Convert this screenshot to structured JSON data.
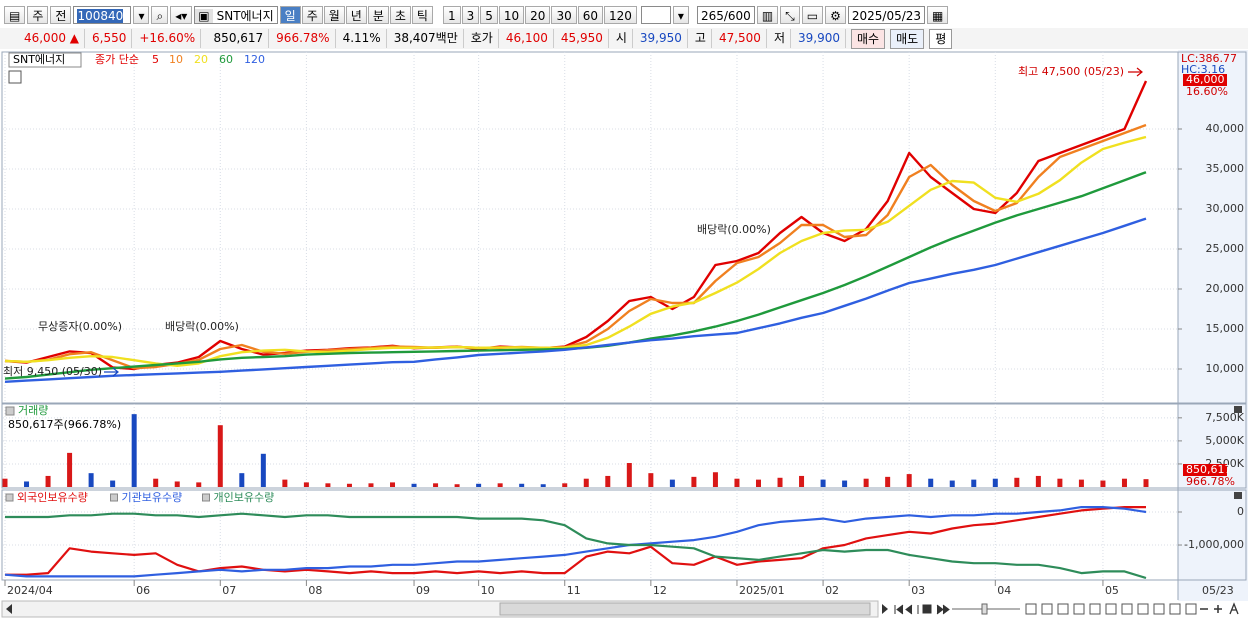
{
  "toolbar": {
    "market": "주",
    "scope": "전",
    "code": "100840",
    "name": "SNT에너지",
    "periods": [
      "일",
      "주",
      "월",
      "년",
      "분",
      "초",
      "틱"
    ],
    "intervals": [
      "1",
      "3",
      "5",
      "10",
      "20",
      "30",
      "60",
      "120"
    ],
    "count": "265",
    "max": "/600",
    "date": "2025/05/23"
  },
  "quote": {
    "price": "46,000 ▲",
    "change": "6,550",
    "rate": "+16.60%",
    "volume": "850,617",
    "volume_rate": "966.78%",
    "turnover": "4.11%",
    "amount": "38,407백만",
    "ask_label": "호가",
    "ask": "46,100",
    "bid": "45,950",
    "open_label": "시",
    "open": "39,950",
    "high_label": "고",
    "high": "47,500",
    "low_label": "저",
    "low": "39,900",
    "buy": "매수",
    "sell": "매도",
    "avg": "평"
  },
  "chart_data": [
    {
      "type": "line",
      "legend_title": "SNT에너지",
      "legend_prefix": "종가 단순",
      "lc": "LC:386.77",
      "hc": "HC:3.16",
      "current": {
        "value": 46000,
        "label": "46,000"
      },
      "change_label": "16.60%",
      "annotations": [
        "최고 47,500 (05/23)",
        "최저 9,450 (05/30)",
        "무상증자(0.00%)",
        "배당락(0.00%)",
        "배당락(0.00%)"
      ],
      "categories": [
        "2024/04",
        null,
        null,
        null,
        null,
        null,
        "06",
        null,
        null,
        null,
        "07",
        null,
        null,
        null,
        "08",
        null,
        null,
        null,
        null,
        "09",
        null,
        null,
        "10",
        null,
        null,
        null,
        "11",
        null,
        null,
        null,
        "12",
        null,
        null,
        null,
        "2025/01",
        null,
        null,
        null,
        "02",
        null,
        null,
        null,
        "03",
        null,
        null,
        null,
        "04",
        null,
        null,
        null,
        null,
        "05",
        null,
        "05/23"
      ],
      "series": [
        {
          "name": "5",
          "color": "#e00000",
          "values": [
            11000,
            10800,
            11500,
            12200,
            12000,
            10200,
            10000,
            10500,
            10800,
            11500,
            13500,
            12500,
            11800,
            12000,
            12300,
            12400,
            12600,
            12700,
            12900,
            12600,
            12700,
            12800,
            12500,
            12800,
            12700,
            12600,
            12800,
            14000,
            16000,
            18500,
            19000,
            17500,
            19000,
            23000,
            23500,
            24500,
            27000,
            29000,
            27000,
            26000,
            27500,
            31000,
            37000,
            34000,
            32000,
            30000,
            29500,
            32000,
            36000,
            37000,
            38000,
            39000,
            40000,
            46000
          ]
        },
        {
          "name": "10",
          "color": "#f08020",
          "values": [
            11000,
            10900,
            11150,
            11850,
            12100,
            11100,
            10100,
            10250,
            10650,
            11150,
            12500,
            13000,
            12150,
            11900,
            12150,
            12350,
            12500,
            12650,
            12800,
            12750,
            12650,
            12750,
            12650,
            12650,
            12750,
            12650,
            12700,
            13400,
            15000,
            17250,
            18750,
            18250,
            18250,
            21000,
            23250,
            24000,
            25750,
            28000,
            28000,
            26500,
            26750,
            29250,
            34000,
            35500,
            33000,
            31000,
            29750,
            30750,
            34000,
            36500,
            37500,
            38500,
            39500,
            40500
          ]
        },
        {
          "name": "20",
          "color": "#f0e020",
          "values": [
            11000,
            10900,
            11100,
            11400,
            11600,
            11500,
            11100,
            10700,
            10400,
            10700,
            11600,
            12100,
            12300,
            12400,
            12200,
            12100,
            12300,
            12500,
            12650,
            12650,
            12700,
            12750,
            12650,
            12700,
            12700,
            12650,
            12700,
            13000,
            13900,
            15300,
            16900,
            17800,
            18300,
            19500,
            20800,
            22500,
            24500,
            26000,
            27000,
            27300,
            27400,
            28400,
            30400,
            32400,
            33500,
            33300,
            31400,
            30900,
            31900,
            33600,
            35800,
            37500,
            38300,
            39000
          ]
        },
        {
          "name": "60",
          "color": "#1f9a3c",
          "values": [
            8800,
            9000,
            9300,
            9600,
            9900,
            10100,
            10300,
            10500,
            10700,
            10900,
            11200,
            11400,
            11500,
            11600,
            11800,
            11900,
            12000,
            12050,
            12100,
            12150,
            12200,
            12250,
            12300,
            12350,
            12400,
            12450,
            12500,
            12650,
            12900,
            13300,
            13800,
            14200,
            14700,
            15300,
            16000,
            16800,
            17700,
            18600,
            19500,
            20500,
            21600,
            22800,
            24000,
            25200,
            26300,
            27300,
            28300,
            29200,
            30000,
            30800,
            31600,
            32600,
            33600,
            34600
          ]
        },
        {
          "name": "120",
          "color": "#2f5fe0",
          "values": [
            8400,
            8550,
            8700,
            8850,
            9000,
            9150,
            9250,
            9350,
            9450,
            9550,
            9650,
            9800,
            9950,
            10100,
            10250,
            10400,
            10550,
            10700,
            10850,
            10900,
            11200,
            11450,
            11750,
            11900,
            12050,
            12200,
            12400,
            12700,
            13000,
            13300,
            13600,
            13800,
            14100,
            14300,
            14500,
            15100,
            15700,
            16400,
            17000,
            17900,
            18800,
            19800,
            20750,
            21300,
            21900,
            22400,
            23000,
            23800,
            24600,
            25400,
            26200,
            27000,
            27900,
            28800
          ]
        }
      ],
      "ylim": [
        5750,
        49625
      ],
      "yticks": [
        {
          "value": 10000,
          "label": "10,000"
        },
        {
          "value": 15000,
          "label": "15,000"
        },
        {
          "value": 20000,
          "label": "20,000"
        },
        {
          "value": 25000,
          "label": "25,000"
        },
        {
          "value": 30000,
          "label": "30,000"
        },
        {
          "value": 35000,
          "label": "35,000"
        },
        {
          "value": 40000,
          "label": "40,000"
        }
      ],
      "grid": true
    },
    {
      "type": "bar",
      "title": "거래량",
      "info": "850,617주(966.78%)",
      "current": {
        "value": 850617,
        "label": "850,617"
      },
      "rate_label": "966.78%",
      "up_color": "#d81818",
      "down_color": "#1848c0",
      "values": [
        900000,
        600000,
        1200000,
        3700000,
        1500000,
        700000,
        7900000,
        900000,
        600000,
        500000,
        6700000,
        1500000,
        3600000,
        800000,
        500000,
        400000,
        350000,
        400000,
        500000,
        350000,
        400000,
        300000,
        350000,
        400000,
        350000,
        300000,
        400000,
        900000,
        1200000,
        2600000,
        1500000,
        800000,
        1100000,
        1600000,
        900000,
        800000,
        1000000,
        1200000,
        800000,
        700000,
        900000,
        1100000,
        1400000,
        900000,
        700000,
        800000,
        900000,
        1000000,
        1200000,
        900000,
        800000,
        700000,
        900000,
        850617
      ],
      "ylim": [
        0,
        9000000
      ],
      "yticks": [
        {
          "value": 2500000,
          "label": "2,500K"
        },
        {
          "value": 5000000,
          "label": "5,000K"
        },
        {
          "value": 7500000,
          "label": "7,500K"
        }
      ],
      "grid": true
    },
    {
      "type": "line",
      "series": [
        {
          "name": "외국인보유수량",
          "color": "#e01010",
          "values": [
            -1900000,
            -1900000,
            -1850000,
            -1100000,
            -1200000,
            -1250000,
            -1300000,
            -1250000,
            -1600000,
            -1800000,
            -1700000,
            -1650000,
            -1750000,
            -1800000,
            -1750000,
            -1800000,
            -1850000,
            -1800000,
            -1850000,
            -1850000,
            -1800000,
            -1850000,
            -1800000,
            -1850000,
            -1800000,
            -1850000,
            -1850000,
            -1350000,
            -1200000,
            -1250000,
            -1050000,
            -1550000,
            -1600000,
            -1350000,
            -1600000,
            -1500000,
            -1450000,
            -1400000,
            -1100000,
            -1000000,
            -800000,
            -700000,
            -600000,
            -650000,
            -500000,
            -400000,
            -350000,
            -250000,
            -150000,
            -50000,
            50000,
            100000,
            150000,
            150000
          ]
        },
        {
          "name": "기관보유수량",
          "color": "#2f5fe0",
          "values": [
            -1900000,
            -1950000,
            -1950000,
            -1950000,
            -1950000,
            -1950000,
            -1950000,
            -1900000,
            -1850000,
            -1800000,
            -1750000,
            -1800000,
            -1750000,
            -1750000,
            -1700000,
            -1700000,
            -1650000,
            -1650000,
            -1600000,
            -1600000,
            -1550000,
            -1500000,
            -1500000,
            -1450000,
            -1400000,
            -1350000,
            -1300000,
            -1200000,
            -1100000,
            -1000000,
            -950000,
            -900000,
            -850000,
            -750000,
            -600000,
            -400000,
            -300000,
            -250000,
            -200000,
            -300000,
            -200000,
            -150000,
            -100000,
            -150000,
            -100000,
            -100000,
            -50000,
            -50000,
            0,
            50000,
            150000,
            150000,
            100000,
            0
          ]
        },
        {
          "name": "개인보유수량",
          "color": "#2e8c5a",
          "values": [
            -150000,
            -150000,
            -150000,
            -100000,
            -100000,
            -50000,
            -50000,
            -100000,
            -100000,
            -150000,
            -100000,
            -50000,
            -100000,
            -150000,
            -100000,
            -100000,
            -150000,
            -150000,
            -150000,
            -150000,
            -150000,
            -150000,
            -200000,
            -200000,
            -200000,
            -250000,
            -400000,
            -800000,
            -950000,
            -1000000,
            -1000000,
            -1050000,
            -1100000,
            -1350000,
            -1400000,
            -1450000,
            -1350000,
            -1250000,
            -1150000,
            -1200000,
            -1150000,
            -1150000,
            -1300000,
            -1400000,
            -1500000,
            -1550000,
            -1550000,
            -1600000,
            -1600000,
            -1700000,
            -1850000,
            -1800000,
            -1800000,
            -2000000
          ]
        }
      ],
      "ylim": [
        -2060000,
        667000
      ],
      "yticks": [
        {
          "value": -1000000,
          "label": "-1,000,000"
        },
        0
      ],
      "grid": true
    }
  ]
}
